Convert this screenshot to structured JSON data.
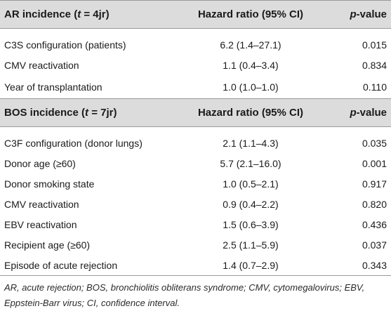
{
  "sections": [
    {
      "header": {
        "title_prefix": "AR incidence (",
        "title_var": "t",
        "title_suffix": " = 4jr)",
        "col_hr": "Hazard ratio (95% CI)",
        "col_p_var": "p",
        "col_p_suffix": "-value"
      },
      "rows": [
        {
          "label": "C3S configuration (patients)",
          "hr": "6.2 (1.4–27.1)",
          "p": "0.015"
        },
        {
          "label": "CMV reactivation",
          "hr": "1.1 (0.4–3.4)",
          "p": "0.834"
        },
        {
          "label": "Year of transplantation",
          "hr": "1.0 (1.0–1.0)",
          "p": "0.110"
        }
      ]
    },
    {
      "header": {
        "title_prefix": "BOS incidence (",
        "title_var": "t",
        "title_suffix": " = 7jr)",
        "col_hr": "Hazard ratio (95% CI)",
        "col_p_var": "p",
        "col_p_suffix": "-value"
      },
      "rows": [
        {
          "label": "C3F configuration (donor lungs)",
          "hr": "2.1 (1.1–4.3)",
          "p": "0.035"
        },
        {
          "label": "Donor age (≥60)",
          "hr": "5.7 (2.1–16.0)",
          "p": "0.001"
        },
        {
          "label": "Donor smoking state",
          "hr": "1.0 (0.5–2.1)",
          "p": "0.917"
        },
        {
          "label": "CMV reactivation",
          "hr": "0.9 (0.4–2.2)",
          "p": "0.820"
        },
        {
          "label": "EBV reactivation",
          "hr": "1.5 (0.6–3.9)",
          "p": "0.436"
        },
        {
          "label": "Recipient age (≥60)",
          "hr": "2.5 (1.1–5.9)",
          "p": "0.037"
        },
        {
          "label": "Episode of acute rejection",
          "hr": "1.4 (0.7–2.9)",
          "p": "0.343"
        }
      ]
    }
  ],
  "footnote": {
    "line1": "AR, acute rejection; BOS, bronchiolitis obliterans syndrome; CMV, cytomegalovirus; EBV,",
    "line2": "Eppstein-Barr virus; CI, confidence interval."
  }
}
